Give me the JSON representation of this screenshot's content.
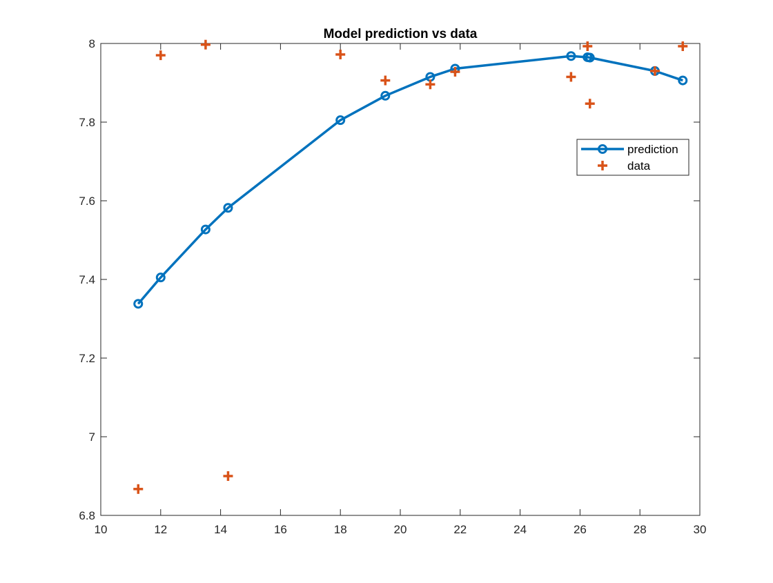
{
  "chart_data": {
    "type": "line",
    "title": "Model prediction vs data",
    "xlabel": "",
    "ylabel": "",
    "xlim": [
      10,
      30
    ],
    "ylim": [
      6.8,
      8
    ],
    "xticks": [
      10,
      12,
      14,
      16,
      18,
      20,
      22,
      24,
      26,
      28,
      30
    ],
    "yticks": [
      6.8,
      7,
      7.2,
      7.4,
      7.6,
      7.8,
      8
    ],
    "xtick_labels": [
      "10",
      "12",
      "14",
      "16",
      "18",
      "20",
      "22",
      "24",
      "26",
      "28",
      "30"
    ],
    "ytick_labels": [
      "6.8",
      "7",
      "7.2",
      "7.4",
      "7.6",
      "7.8",
      "8"
    ],
    "grid": false,
    "legend_position": "top-right",
    "series": [
      {
        "name": "prediction",
        "style": "line-circle",
        "color": "#0072BD",
        "x": [
          11.25,
          12.0,
          13.5,
          14.25,
          18.0,
          19.5,
          21.0,
          21.83,
          25.7,
          26.25,
          26.33,
          28.5,
          29.43
        ],
        "y": [
          7.338,
          7.405,
          7.527,
          7.582,
          7.805,
          7.867,
          7.915,
          7.936,
          7.968,
          7.965,
          7.964,
          7.93,
          7.906
        ]
      },
      {
        "name": "data",
        "style": "plus",
        "color": "#D95319",
        "x": [
          11.25,
          12.0,
          13.5,
          14.25,
          18.0,
          19.5,
          21.0,
          21.83,
          25.7,
          26.25,
          26.33,
          28.5,
          29.43
        ],
        "y": [
          6.867,
          7.97,
          7.997,
          6.9,
          7.972,
          7.906,
          7.896,
          7.928,
          7.915,
          7.993,
          7.847,
          7.93,
          7.993
        ]
      }
    ]
  }
}
